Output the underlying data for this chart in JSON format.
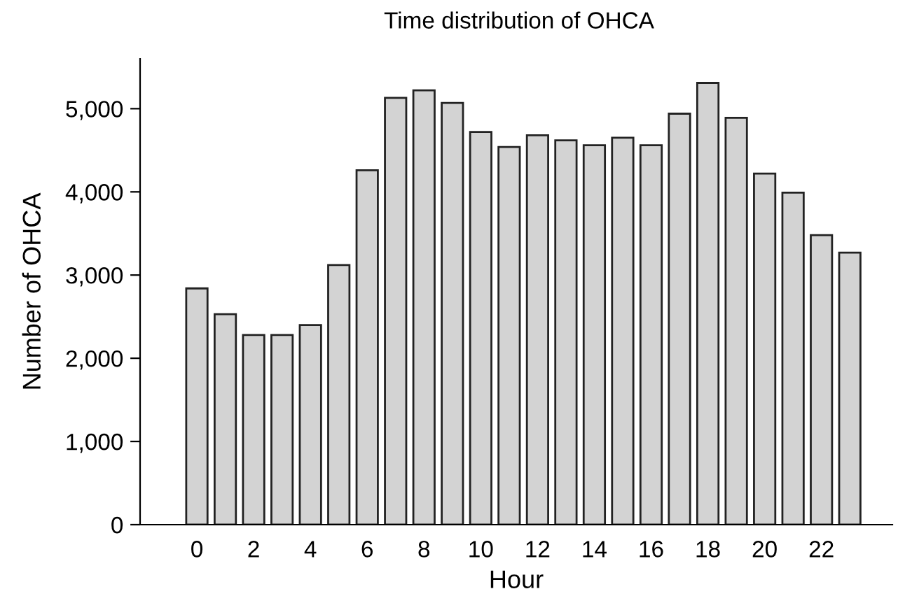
{
  "chart_data": {
    "type": "bar",
    "title": "Time distribution of OHCA",
    "xlabel": "Hour",
    "ylabel": "Number of OHCA",
    "x": [
      0,
      1,
      2,
      3,
      4,
      5,
      6,
      7,
      8,
      9,
      10,
      11,
      12,
      13,
      14,
      15,
      16,
      17,
      18,
      19,
      20,
      21,
      22,
      23
    ],
    "values": [
      2840,
      2530,
      2280,
      2280,
      2400,
      3120,
      4260,
      5130,
      5220,
      5070,
      4720,
      4540,
      4680,
      4620,
      4560,
      4650,
      4560,
      4940,
      5310,
      4890,
      4220,
      3990,
      3480,
      3270
    ],
    "color": "#d3d3d3",
    "xlim": [
      -2,
      24.5
    ],
    "xticks": [
      0,
      2,
      4,
      6,
      8,
      10,
      12,
      14,
      16,
      18,
      20,
      22
    ],
    "ylim": [
      0,
      5600
    ],
    "yticks": [
      {
        "value": 0,
        "label": "0"
      },
      {
        "value": 1000,
        "label": "1,000"
      },
      {
        "value": 2000,
        "label": "2,000"
      },
      {
        "value": 3000,
        "label": "3,000"
      },
      {
        "value": 4000,
        "label": "4,000"
      },
      {
        "value": 5000,
        "label": "5,000"
      }
    ],
    "grid": false
  }
}
